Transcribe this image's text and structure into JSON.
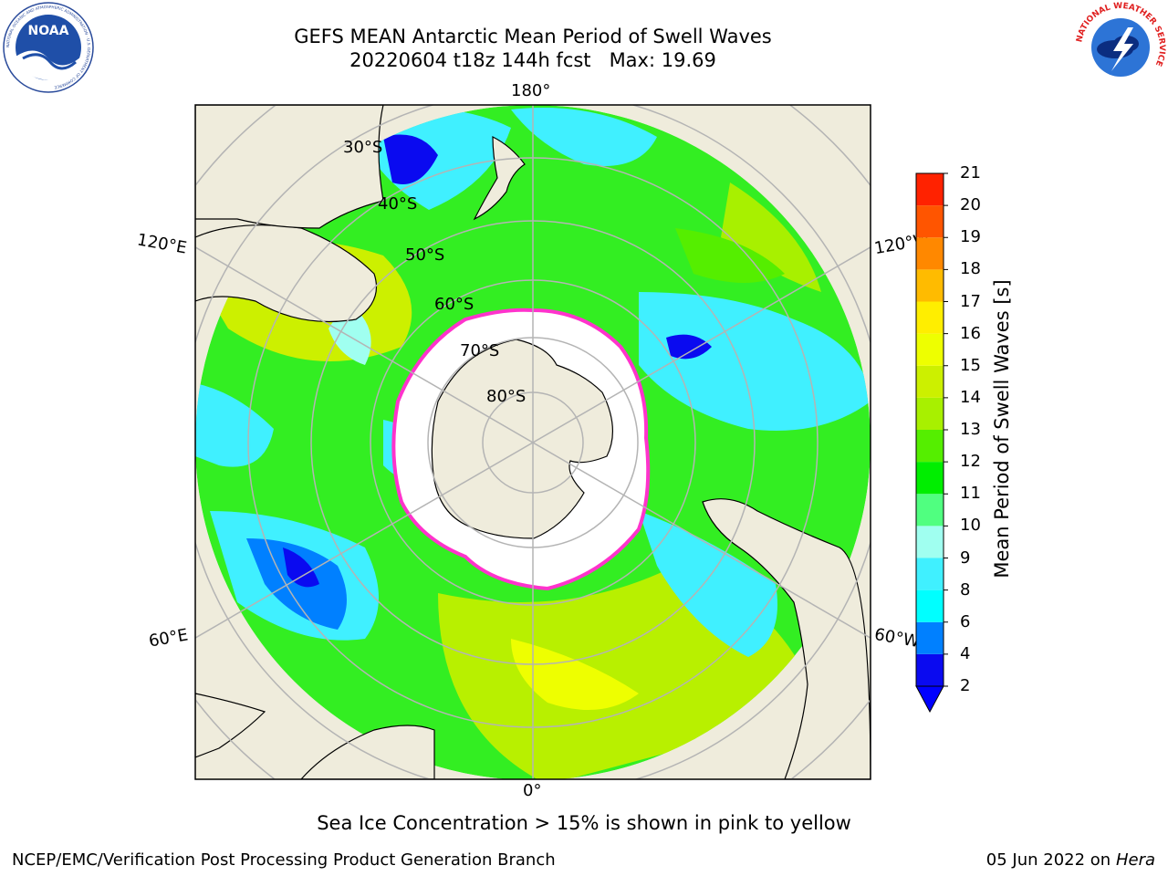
{
  "header": {
    "title_line1": "GEFS MEAN Antarctic Mean Period of Swell Waves",
    "title_line2": "20220604 t18z 144h fcst   Max: 19.69"
  },
  "logos": {
    "left": {
      "icon": "noaa-logo-icon",
      "text": "NOAA",
      "ring_text": "NATIONAL OCEANIC AND ATMOSPHERIC ADMINISTRATION · U.S. DEPARTMENT OF COMMERCE"
    },
    "right": {
      "icon": "nws-logo-icon",
      "ring_text": "NATIONAL WEATHER SERVICE"
    }
  },
  "map": {
    "projection": "south-polar-stereographic",
    "lon_labels": {
      "top": "180°",
      "bottom": "0°",
      "left_upper": "120°E",
      "left_lower": "60°E",
      "right_upper": "120°W",
      "right_lower": "60°W"
    },
    "lat_labels": [
      "30°S",
      "40°S",
      "50°S",
      "60°S",
      "70°S",
      "80°S"
    ],
    "colors": {
      "land": "#efecdc",
      "ice": "#ffffff",
      "grid": "#b4b4b4",
      "coast": "#000000",
      "ice_edge": "#ff33cc"
    }
  },
  "colorbar": {
    "label": "Mean Period of Swell Waves [s]",
    "ticks": [
      "2",
      "4",
      "6",
      "8",
      "9",
      "10",
      "11",
      "12",
      "13",
      "14",
      "15",
      "16",
      "17",
      "18",
      "19",
      "20",
      "21"
    ],
    "colors": [
      "#0a0af0",
      "#0080ff",
      "#00ffff",
      "#40f0ff",
      "#a0fff0",
      "#50ff80",
      "#00ee00",
      "#55ee00",
      "#a8f000",
      "#ccf000",
      "#eeff00",
      "#ffee00",
      "#ffbb00",
      "#ff8800",
      "#ff5500",
      "#ff2200"
    ],
    "under_color": "#0000ff"
  },
  "footer": {
    "note": "Sea Ice Concentration > 15% is shown in pink to yellow",
    "credit": "NCEP/EMC/Verification Post Processing Product Generation Branch",
    "date": "05 Jun 2022 on",
    "machine": "Hera"
  }
}
